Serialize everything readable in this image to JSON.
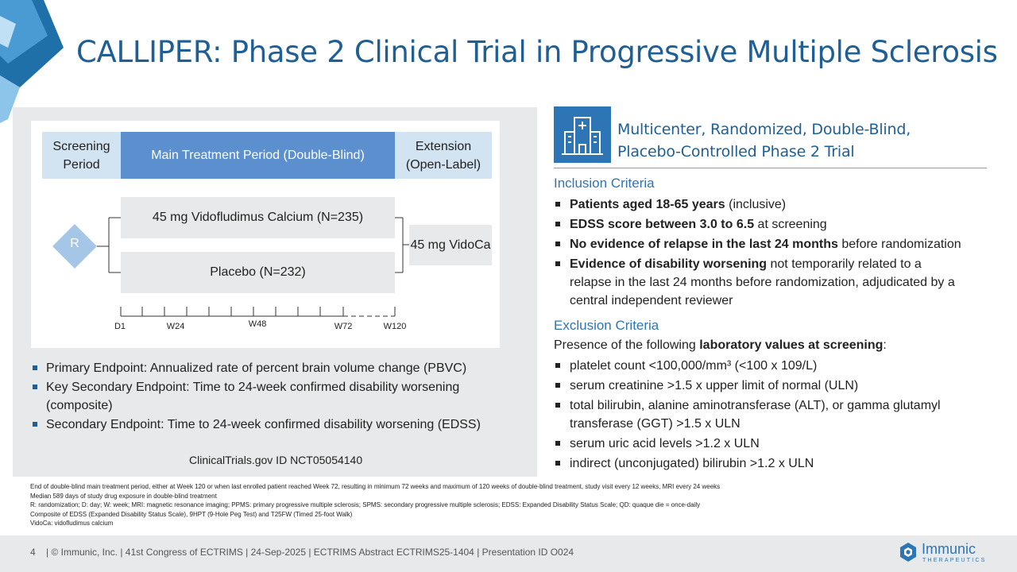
{
  "title": "CALLIPER: Phase 2 Clinical Trial in Progressive Multiple Sclerosis",
  "design": {
    "phases": {
      "screening": "Screening Period",
      "main": "Main Treatment Period (Double-Blind)",
      "extension": "Extension (Open-Label)"
    },
    "randomization_label": "R",
    "arms": [
      "45 mg Vidofludimus Calcium (N=235)",
      "Placebo (N=232)"
    ],
    "extension_arm": "45 mg VidoCa",
    "timeline_ticks": [
      "D1",
      "W24",
      "W48",
      "W72",
      "W120"
    ]
  },
  "endpoints": [
    "Primary Endpoint: Annualized rate of percent brain volume change (PBVC)",
    "Key Secondary Endpoint: Time to 24-week confirmed disability worsening (composite)",
    "Secondary Endpoint: Time to 24-week confirmed disability worsening (EDSS)"
  ],
  "clinicaltrials_id": "ClinicalTrials.gov ID NCT05054140",
  "trial_heading": "Multicenter, Randomized, Double-Blind, Placebo-Controlled Phase 2 Trial",
  "inclusion": {
    "heading": "Inclusion Criteria",
    "items": [
      {
        "bold": "Patients aged 18-65 years",
        "rest": " (inclusive)"
      },
      {
        "bold": "EDSS score between 3.0 to 6.5",
        "rest": " at screening"
      },
      {
        "bold": "No evidence of relapse in the last 24 months",
        "rest": " before randomization"
      },
      {
        "bold": "Evidence of disability worsening",
        "rest": " not temporarily related to a relapse in the last 24 months before randomization, adjudicated by a central independent reviewer"
      }
    ]
  },
  "exclusion": {
    "heading": "Exclusion Criteria",
    "intro_plain": "Presence of the following ",
    "intro_bold": "laboratory values at screening",
    "intro_end": ":",
    "items": [
      "platelet count <100,000/mm³ (<100 x 109/L)",
      "serum creatinine >1.5 x upper limit of normal (ULN)",
      "total bilirubin, alanine aminotransferase (ALT), or gamma glutamyl transferase (GGT) >1.5 x ULN",
      "serum uric acid levels >1.2 x ULN",
      "indirect (unconjugated) bilirubin >1.2 x ULN"
    ]
  },
  "footnotes": [
    "End of double-blind main treatment period, either at Week 120 or when last enrolled patient reached Week 72, resulting in minimum 72 weeks and maximum of 120 weeks of double-blind treatment, study visit every 12 weeks, MRI every 24 weeks",
    "Median 589 days of study drug exposure in double-blind treatment",
    "R: randomization; D: day; W: week; MRI: magnetic resonance imaging; PPMS: primary progressive multiple sclerosis; SPMS: secondary progressive multiple sclerosis; EDSS: Expanded Disability Status Scale; QD: quaque die = once-daily",
    "Composite of EDSS (Expanded Disability Status Scale), 9HPT (9-Hole Peg Test) and T25FW (Timed 25-foot Walk)",
    "VidoCa: vidofludimus calcium"
  ],
  "footer": {
    "page_number": "4",
    "text": "|  © Immunic, Inc. | 41st Congress of ECTRIMS | 24-Sep-2025 | ECTRIMS Abstract ECTRIMS25-1404 | Presentation ID O024",
    "logo_name": "Immunic",
    "logo_sub": "THERAPEUTICS"
  },
  "colors": {
    "title_blue": "#1f5f94",
    "main_phase": "#5b8fcd",
    "light_phase": "#d2e3f1",
    "panel_gray": "#e8e9ea",
    "accent_blue": "#2e75b6"
  },
  "icons": [
    "hospital-icon",
    "immunic-logo-icon",
    "randomization-diamond"
  ]
}
